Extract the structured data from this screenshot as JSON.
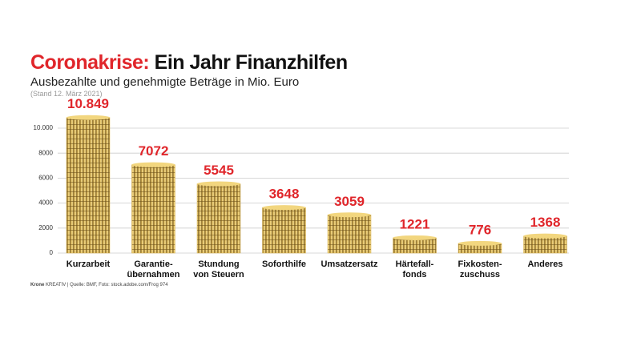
{
  "chart_data": {
    "type": "bar",
    "title_prefix": "Coronakrise:",
    "title": "Ein Jahr Finanzhilfen",
    "subtitle": "Ausbezahlte und genehmigte Beträge in Mio. Euro",
    "note": "(Stand 12. März 2021)",
    "source_brand": "Krone",
    "source": "KREATIV | Quelle: BMF, Foto: stock.adobe.com/Frog 974",
    "categories": [
      "Kurzarbeit",
      "Garantie-\nübernahmen",
      "Stundung\nvon Steuern",
      "Soforthilfe",
      "Umsatzersatz",
      "Härtefall-\nfonds",
      "Fixkosten-\nzuschuss",
      "Anderes"
    ],
    "values": [
      10849,
      7072,
      5545,
      3648,
      3059,
      1221,
      776,
      1368
    ],
    "value_labels": [
      "10.849",
      "7072",
      "5545",
      "3648",
      "3059",
      "1221",
      "776",
      "1368"
    ],
    "color": "#d9b24a",
    "label_color": "#e0262b",
    "ylim": [
      0,
      10000
    ],
    "yticks": [
      0,
      2000,
      4000,
      6000,
      8000,
      {
        "value": 10000,
        "label": "10.000"
      }
    ],
    "grid": true
  }
}
